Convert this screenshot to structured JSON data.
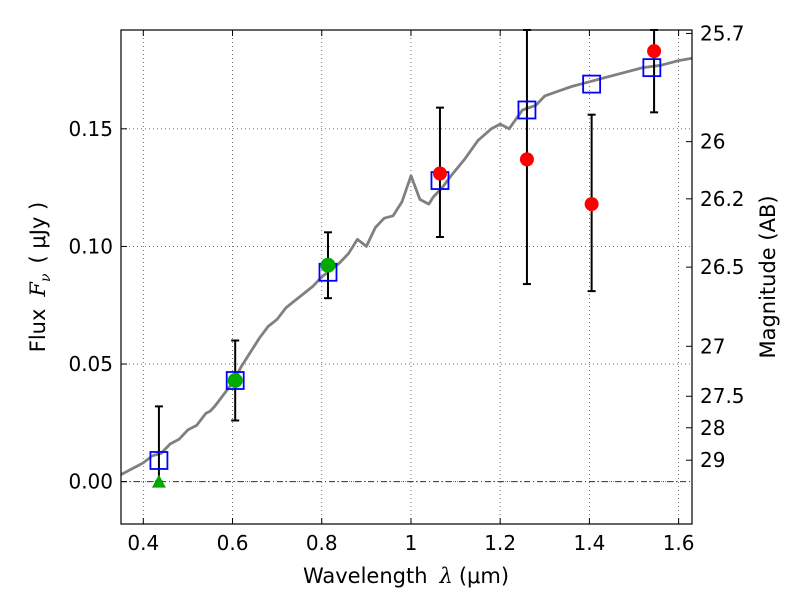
{
  "chart_data": {
    "type": "scatter",
    "xlabel_prefix": "Wavelength",
    "xlabel_symbol": "λ",
    "xlabel_unit": "(μm)",
    "ylabel_prefix": "Flux",
    "ylabel_symbol": "F",
    "ylabel_subscript": "ν",
    "ylabel_unit": "( μJy )",
    "y2label": "Magnitude (AB)",
    "xlim": [
      0.35,
      1.63
    ],
    "ylim": [
      -0.018,
      0.192
    ],
    "grid": true,
    "x_ticks": [
      0.4,
      0.6,
      0.8,
      1.0,
      1.2,
      1.4,
      1.6
    ],
    "x_tick_labels": [
      "0.4",
      "0.6",
      "0.8",
      "1",
      "1.2",
      "1.4",
      "1.6"
    ],
    "y_ticks": [
      0.0,
      0.05,
      0.1,
      0.15
    ],
    "y_tick_labels": [
      "0.00",
      "0.05",
      "0.10",
      "0.15"
    ],
    "mag_ticks": [
      {
        "label": "25.7",
        "mag": 25.7
      },
      {
        "label": "26",
        "mag": 26.0
      },
      {
        "label": "26.2",
        "mag": 26.2
      },
      {
        "label": "26.5",
        "mag": 26.5
      },
      {
        "label": "27",
        "mag": 27.0
      },
      {
        "label": "27.5",
        "mag": 27.5
      },
      {
        "label": "28",
        "mag": 28.0
      },
      {
        "label": "29",
        "mag": 29.0
      }
    ],
    "zero_line": 0.0,
    "colors": {
      "model": "#808080",
      "model_points": "#0000ff",
      "detections": "#ff0000",
      "optical": "#00aa00",
      "errorbars": "#000000",
      "grid": "#555555"
    },
    "series": [
      {
        "kind": "model_spectrum",
        "x": [
          0.35,
          0.37,
          0.39,
          0.4,
          0.42,
          0.44,
          0.46,
          0.48,
          0.5,
          0.52,
          0.54,
          0.55,
          0.56,
          0.58,
          0.6,
          0.62,
          0.64,
          0.66,
          0.68,
          0.7,
          0.72,
          0.74,
          0.76,
          0.78,
          0.8,
          0.82,
          0.84,
          0.86,
          0.88,
          0.9,
          0.92,
          0.94,
          0.96,
          0.98,
          1.0,
          1.02,
          1.04,
          1.05,
          1.07,
          1.09,
          1.12,
          1.15,
          1.18,
          1.2,
          1.22,
          1.25,
          1.28,
          1.3,
          1.33,
          1.36,
          1.4,
          1.44,
          1.48,
          1.52,
          1.56,
          1.6,
          1.63
        ],
        "y": [
          0.003,
          0.005,
          0.007,
          0.008,
          0.011,
          0.012,
          0.016,
          0.018,
          0.022,
          0.024,
          0.029,
          0.03,
          0.032,
          0.037,
          0.042,
          0.049,
          0.055,
          0.061,
          0.066,
          0.069,
          0.074,
          0.077,
          0.08,
          0.083,
          0.087,
          0.09,
          0.093,
          0.097,
          0.103,
          0.1,
          0.108,
          0.112,
          0.113,
          0.119,
          0.13,
          0.12,
          0.118,
          0.121,
          0.125,
          0.13,
          0.137,
          0.145,
          0.15,
          0.152,
          0.15,
          0.158,
          0.16,
          0.164,
          0.166,
          0.168,
          0.17,
          0.172,
          0.174,
          0.176,
          0.177,
          0.179,
          0.18
        ]
      },
      {
        "kind": "model_photometry",
        "x": [
          0.435,
          0.606,
          0.814,
          1.065,
          1.26,
          1.405,
          1.54
        ],
        "y": [
          0.009,
          0.043,
          0.089,
          0.128,
          0.158,
          0.169,
          0.176
        ]
      },
      {
        "kind": "ir_detections",
        "x": [
          1.065,
          1.26,
          1.405,
          1.545
        ],
        "y": [
          0.131,
          0.137,
          0.118,
          0.183
        ],
        "yerr_low": [
          0.104,
          0.084,
          0.081,
          0.157
        ],
        "yerr_high": [
          0.159,
          0.192,
          0.156,
          0.192
        ]
      },
      {
        "kind": "optical_detections",
        "x": [
          0.606,
          0.814
        ],
        "y": [
          0.043,
          0.092
        ],
        "yerr_low": [
          0.026,
          0.078
        ],
        "yerr_high": [
          0.06,
          0.106
        ]
      },
      {
        "kind": "upper_limit",
        "x": [
          0.435
        ],
        "y": [
          0.0
        ],
        "yerr_high": [
          0.032
        ]
      }
    ]
  }
}
